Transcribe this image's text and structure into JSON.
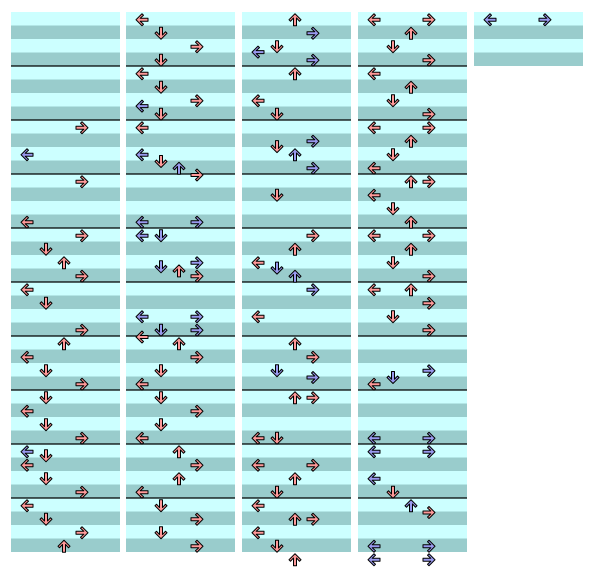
{
  "colors": {
    "band_light": "#ccffff",
    "band_dark": "#99cccc",
    "measure_line": "#000000",
    "arrow_red_fill": "#ff9999",
    "arrow_blue_fill": "#9999ee",
    "arrow_outline": "#000000"
  },
  "arrow_icons": {
    "L": "left-arrow-icon",
    "D": "down-arrow-icon",
    "U": "up-arrow-icon",
    "R": "right-arrow-icon"
  },
  "chart_data": {
    "type": "step-chart",
    "lanes": [
      "L",
      "D",
      "U",
      "R"
    ],
    "rows_per_measure": 4,
    "notes_per_column": [
      [
        [
          8,
          "R",
          "red"
        ],
        [
          10,
          "L",
          "blue"
        ],
        [
          12,
          "R",
          "red"
        ],
        [
          15,
          "L",
          "red"
        ],
        [
          16,
          "R",
          "red"
        ],
        [
          17,
          "D",
          "red"
        ],
        [
          18,
          "U",
          "red"
        ],
        [
          19,
          "R",
          "red"
        ],
        [
          20,
          "L",
          "red"
        ],
        [
          21,
          "D",
          "red"
        ],
        [
          23,
          "R",
          "red"
        ],
        [
          24,
          "U",
          "red"
        ],
        [
          25,
          "L",
          "red"
        ],
        [
          26,
          "D",
          "red"
        ],
        [
          27,
          "R",
          "red"
        ],
        [
          28,
          "D",
          "red"
        ],
        [
          29,
          "L",
          "red"
        ],
        [
          30,
          "D",
          "red"
        ],
        [
          31,
          "R",
          "red"
        ],
        [
          32,
          "L",
          "blue"
        ],
        [
          32.3,
          "D",
          "red"
        ],
        [
          33,
          "L",
          "red"
        ],
        [
          34,
          "D",
          "red"
        ],
        [
          35,
          "R",
          "red"
        ],
        [
          36,
          "L",
          "red"
        ],
        [
          37,
          "D",
          "red"
        ],
        [
          38,
          "R",
          "red"
        ],
        [
          39,
          "U",
          "red"
        ]
      ],
      [
        [
          0,
          "L",
          "red"
        ],
        [
          1,
          "D",
          "red"
        ],
        [
          2,
          "R",
          "red"
        ],
        [
          3,
          "D",
          "red"
        ],
        [
          4,
          "L",
          "red"
        ],
        [
          5,
          "D",
          "red"
        ],
        [
          6,
          "R",
          "red"
        ],
        [
          6.4,
          "L",
          "blue"
        ],
        [
          7,
          "D",
          "red"
        ],
        [
          8,
          "L",
          "red"
        ],
        [
          10,
          "L",
          "blue"
        ],
        [
          10.5,
          "D",
          "red"
        ],
        [
          11,
          "U",
          "blue"
        ],
        [
          11.5,
          "R",
          "red"
        ],
        [
          15,
          "R",
          "blue"
        ],
        [
          15,
          "L",
          "blue"
        ],
        [
          16,
          "L",
          "blue"
        ],
        [
          16,
          "D",
          "blue"
        ],
        [
          18,
          "R",
          "blue"
        ],
        [
          18.3,
          "D",
          "blue"
        ],
        [
          18.6,
          "U",
          "red"
        ],
        [
          19,
          "R",
          "red"
        ],
        [
          22,
          "R",
          "blue"
        ],
        [
          22,
          "L",
          "blue"
        ],
        [
          23,
          "D",
          "blue"
        ],
        [
          23,
          "R",
          "blue"
        ],
        [
          23.5,
          "L",
          "red"
        ],
        [
          24,
          "U",
          "red"
        ],
        [
          25,
          "R",
          "red"
        ],
        [
          26,
          "D",
          "red"
        ],
        [
          27,
          "L",
          "red"
        ],
        [
          28,
          "D",
          "red"
        ],
        [
          29,
          "R",
          "red"
        ],
        [
          30,
          "D",
          "red"
        ],
        [
          31,
          "L",
          "red"
        ],
        [
          32,
          "U",
          "red"
        ],
        [
          33,
          "R",
          "red"
        ],
        [
          34,
          "U",
          "red"
        ],
        [
          35,
          "L",
          "red"
        ],
        [
          36,
          "D",
          "red"
        ],
        [
          37,
          "R",
          "red"
        ],
        [
          38,
          "D",
          "red"
        ],
        [
          39,
          "R",
          "red"
        ]
      ],
      [
        [
          0,
          "U",
          "red"
        ],
        [
          1,
          "R",
          "blue"
        ],
        [
          2,
          "D",
          "red"
        ],
        [
          2.4,
          "L",
          "blue"
        ],
        [
          3,
          "R",
          "blue"
        ],
        [
          4,
          "U",
          "red"
        ],
        [
          6,
          "L",
          "red"
        ],
        [
          7,
          "D",
          "red"
        ],
        [
          9,
          "R",
          "blue"
        ],
        [
          9.4,
          "D",
          "red"
        ],
        [
          10,
          "U",
          "blue"
        ],
        [
          11,
          "R",
          "blue"
        ],
        [
          13,
          "D",
          "red"
        ],
        [
          16,
          "R",
          "red"
        ],
        [
          17,
          "U",
          "red"
        ],
        [
          18,
          "L",
          "red"
        ],
        [
          18.4,
          "D",
          "blue"
        ],
        [
          19,
          "U",
          "blue"
        ],
        [
          20,
          "R",
          "blue"
        ],
        [
          22,
          "L",
          "red"
        ],
        [
          24,
          "U",
          "red"
        ],
        [
          25,
          "R",
          "red"
        ],
        [
          26,
          "D",
          "blue"
        ],
        [
          26.5,
          "R",
          "blue"
        ],
        [
          28,
          "U",
          "red"
        ],
        [
          28,
          "R",
          "red"
        ],
        [
          31,
          "L",
          "red"
        ],
        [
          31,
          "D",
          "red"
        ],
        [
          33,
          "R",
          "red"
        ],
        [
          33,
          "L",
          "red"
        ],
        [
          34,
          "U",
          "red"
        ],
        [
          35,
          "D",
          "red"
        ],
        [
          36,
          "L",
          "red"
        ],
        [
          37,
          "U",
          "red"
        ],
        [
          37,
          "R",
          "red"
        ],
        [
          38,
          "L",
          "red"
        ],
        [
          39,
          "D",
          "red"
        ],
        [
          40,
          "U",
          "red"
        ]
      ],
      [
        [
          0,
          "R",
          "red"
        ],
        [
          0,
          "L",
          "red"
        ],
        [
          1,
          "U",
          "red"
        ],
        [
          2,
          "D",
          "red"
        ],
        [
          3,
          "R",
          "red"
        ],
        [
          4,
          "L",
          "red"
        ],
        [
          5,
          "U",
          "red"
        ],
        [
          6,
          "D",
          "red"
        ],
        [
          7,
          "R",
          "red"
        ],
        [
          8,
          "R",
          "red"
        ],
        [
          8,
          "L",
          "red"
        ],
        [
          9,
          "U",
          "red"
        ],
        [
          10,
          "D",
          "red"
        ],
        [
          11,
          "L",
          "red"
        ],
        [
          12,
          "U",
          "red"
        ],
        [
          12,
          "R",
          "red"
        ],
        [
          13,
          "L",
          "red"
        ],
        [
          14,
          "D",
          "red"
        ],
        [
          15,
          "U",
          "red"
        ],
        [
          16,
          "R",
          "red"
        ],
        [
          16,
          "L",
          "red"
        ],
        [
          17,
          "U",
          "red"
        ],
        [
          18,
          "D",
          "red"
        ],
        [
          19,
          "R",
          "red"
        ],
        [
          20,
          "L",
          "red"
        ],
        [
          20,
          "U",
          "red"
        ],
        [
          21,
          "R",
          "red"
        ],
        [
          22,
          "D",
          "red"
        ],
        [
          23,
          "R",
          "red"
        ],
        [
          26,
          "R",
          "blue"
        ],
        [
          26.5,
          "D",
          "blue"
        ],
        [
          27,
          "L",
          "red"
        ],
        [
          31,
          "R",
          "blue"
        ],
        [
          31,
          "L",
          "blue"
        ],
        [
          32,
          "R",
          "blue"
        ],
        [
          32,
          "L",
          "blue"
        ],
        [
          34,
          "L",
          "blue"
        ],
        [
          35,
          "D",
          "red"
        ],
        [
          36,
          "U",
          "blue"
        ],
        [
          36.5,
          "R",
          "red"
        ],
        [
          39,
          "R",
          "blue"
        ],
        [
          39,
          "L",
          "blue"
        ],
        [
          40,
          "R",
          "blue"
        ],
        [
          40,
          "L",
          "blue"
        ]
      ],
      [
        [
          0,
          "R",
          "blue"
        ],
        [
          0,
          "L",
          "blue"
        ]
      ]
    ],
    "rows_per_column": [
      40,
      40,
      40,
      40,
      4
    ]
  }
}
